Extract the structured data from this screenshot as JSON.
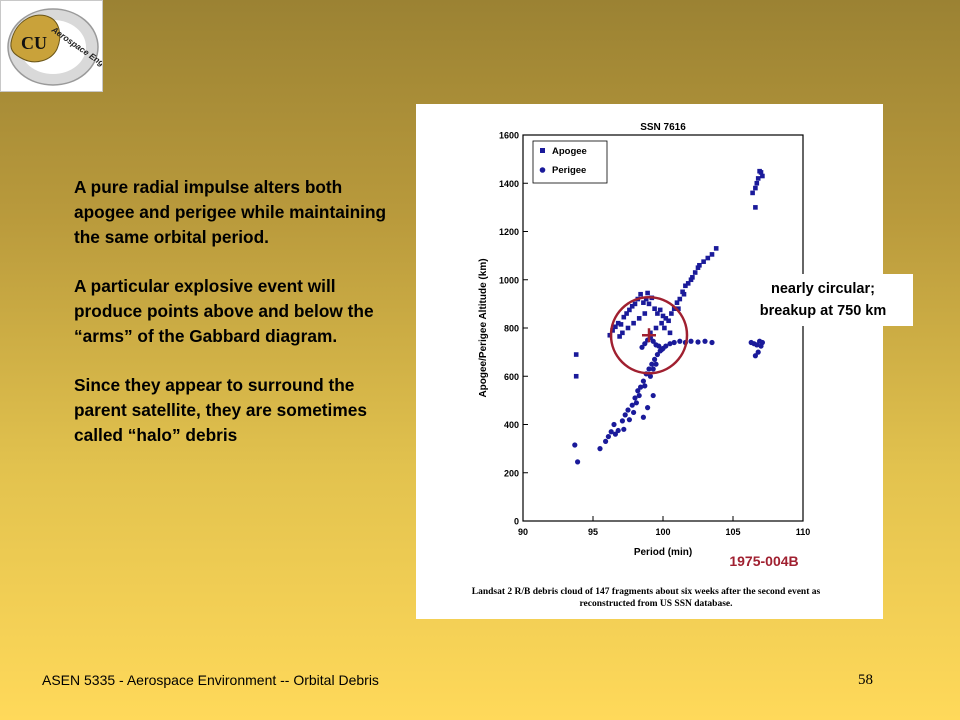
{
  "logo": {
    "badge_text": "CU",
    "arc_text": "Aerospace Engineering"
  },
  "bullets": [
    "A pure radial impulse alters both apogee and perigee while maintaining the same orbital period.",
    "A particular explosive event will produce points above and below the “arms” of the Gabbard diagram.",
    "Since they appear to surround the parent satellite, they are sometimes called “halo” debris"
  ],
  "annotation": {
    "line1": "nearly circular;",
    "line2": "breakup at 750 km"
  },
  "footer": {
    "course": "ASEN 5335 - Aerospace Environment -- Orbital Debris",
    "page_number": "58"
  },
  "chart_data": {
    "type": "scatter",
    "title": "SSN 7616",
    "xlabel": "Period (min)",
    "ylabel": "Apogee/Perigee Altitude (km)",
    "xlim": [
      90,
      110
    ],
    "ylim": [
      0,
      1600
    ],
    "x_ticks": [
      90,
      95,
      100,
      105,
      110
    ],
    "y_ticks": [
      0,
      200,
      400,
      600,
      800,
      1000,
      1200,
      1400,
      1600
    ],
    "legend_position": "top-left",
    "grid": false,
    "object_label": "1975-004B",
    "caption_line1": "Landsat 2 R/B debris cloud of 147 fragments about six weeks after the second event as",
    "caption_line2": "reconstructed from US SSN database.",
    "highlight": {
      "x": 99,
      "y": 770,
      "color": "#a02030"
    },
    "colors": {
      "points": "#1a1a9a",
      "highlight": "#a02030",
      "label": "#a02030"
    },
    "series": [
      {
        "name": "Apogee",
        "marker": "square",
        "points": [
          [
            93.8,
            690
          ],
          [
            93.8,
            600
          ],
          [
            96.2,
            770
          ],
          [
            96.4,
            790
          ],
          [
            96.6,
            805
          ],
          [
            96.8,
            820
          ],
          [
            97.0,
            815
          ],
          [
            97.2,
            845
          ],
          [
            97.4,
            860
          ],
          [
            97.6,
            875
          ],
          [
            97.8,
            890
          ],
          [
            98.0,
            900
          ],
          [
            98.2,
            920
          ],
          [
            98.4,
            940
          ],
          [
            98.6,
            905
          ],
          [
            98.8,
            920
          ],
          [
            98.9,
            945
          ],
          [
            99.0,
            900
          ],
          [
            99.2,
            925
          ],
          [
            99.4,
            880
          ],
          [
            99.6,
            860
          ],
          [
            99.8,
            875
          ],
          [
            100.0,
            850
          ],
          [
            100.2,
            840
          ],
          [
            100.4,
            830
          ],
          [
            100.6,
            860
          ],
          [
            100.8,
            880
          ],
          [
            101.0,
            905
          ],
          [
            101.2,
            920
          ],
          [
            101.4,
            950
          ],
          [
            101.6,
            975
          ],
          [
            101.8,
            985
          ],
          [
            102.0,
            1000
          ],
          [
            102.3,
            1030
          ],
          [
            102.6,
            1060
          ],
          [
            102.9,
            1075
          ],
          [
            103.2,
            1090
          ],
          [
            103.5,
            1105
          ],
          [
            103.8,
            1130
          ],
          [
            97.1,
            780
          ],
          [
            97.5,
            800
          ],
          [
            97.9,
            820
          ],
          [
            98.3,
            840
          ],
          [
            98.7,
            860
          ],
          [
            99.1,
            780
          ],
          [
            99.5,
            800
          ],
          [
            99.9,
            820
          ],
          [
            100.1,
            800
          ],
          [
            100.5,
            780
          ],
          [
            96.9,
            765
          ],
          [
            101.1,
            880
          ],
          [
            101.5,
            940
          ],
          [
            102.1,
            1010
          ],
          [
            102.5,
            1050
          ],
          [
            106.4,
            1360
          ],
          [
            106.6,
            1380
          ],
          [
            106.7,
            1400
          ],
          [
            106.8,
            1420
          ],
          [
            106.9,
            1450
          ],
          [
            107.0,
            1445
          ],
          [
            107.1,
            1430
          ],
          [
            106.6,
            1300
          ]
        ]
      },
      {
        "name": "Perigee",
        "marker": "dot",
        "points": [
          [
            93.7,
            315
          ],
          [
            93.9,
            245
          ],
          [
            95.5,
            300
          ],
          [
            95.9,
            330
          ],
          [
            96.1,
            350
          ],
          [
            96.3,
            370
          ],
          [
            96.5,
            400
          ],
          [
            96.8,
            375
          ],
          [
            97.1,
            415
          ],
          [
            97.3,
            440
          ],
          [
            97.5,
            460
          ],
          [
            97.8,
            480
          ],
          [
            98.0,
            510
          ],
          [
            98.2,
            540
          ],
          [
            98.4,
            555
          ],
          [
            98.6,
            580
          ],
          [
            98.8,
            610
          ],
          [
            99.0,
            630
          ],
          [
            99.2,
            650
          ],
          [
            99.4,
            670
          ],
          [
            99.6,
            690
          ],
          [
            99.8,
            705
          ],
          [
            100.0,
            715
          ],
          [
            100.2,
            725
          ],
          [
            100.5,
            735
          ],
          [
            100.8,
            740
          ],
          [
            101.2,
            745
          ],
          [
            101.6,
            740
          ],
          [
            102.0,
            745
          ],
          [
            102.5,
            742
          ],
          [
            103.0,
            745
          ],
          [
            103.5,
            740
          ],
          [
            97.6,
            420
          ],
          [
            97.9,
            450
          ],
          [
            98.1,
            490
          ],
          [
            98.3,
            520
          ],
          [
            98.7,
            560
          ],
          [
            99.1,
            600
          ],
          [
            99.3,
            630
          ],
          [
            99.5,
            650
          ],
          [
            98.5,
            720
          ],
          [
            98.7,
            735
          ],
          [
            98.9,
            750
          ],
          [
            99.1,
            760
          ],
          [
            99.3,
            745
          ],
          [
            99.5,
            730
          ],
          [
            99.7,
            725
          ],
          [
            99.9,
            710
          ],
          [
            98.6,
            430
          ],
          [
            98.9,
            470
          ],
          [
            99.3,
            520
          ],
          [
            96.6,
            360
          ],
          [
            97.2,
            380
          ],
          [
            106.3,
            740
          ],
          [
            106.5,
            735
          ],
          [
            106.7,
            730
          ],
          [
            106.8,
            700
          ],
          [
            106.9,
            745
          ],
          [
            107.0,
            725
          ],
          [
            107.1,
            740
          ],
          [
            106.6,
            685
          ]
        ]
      }
    ]
  }
}
